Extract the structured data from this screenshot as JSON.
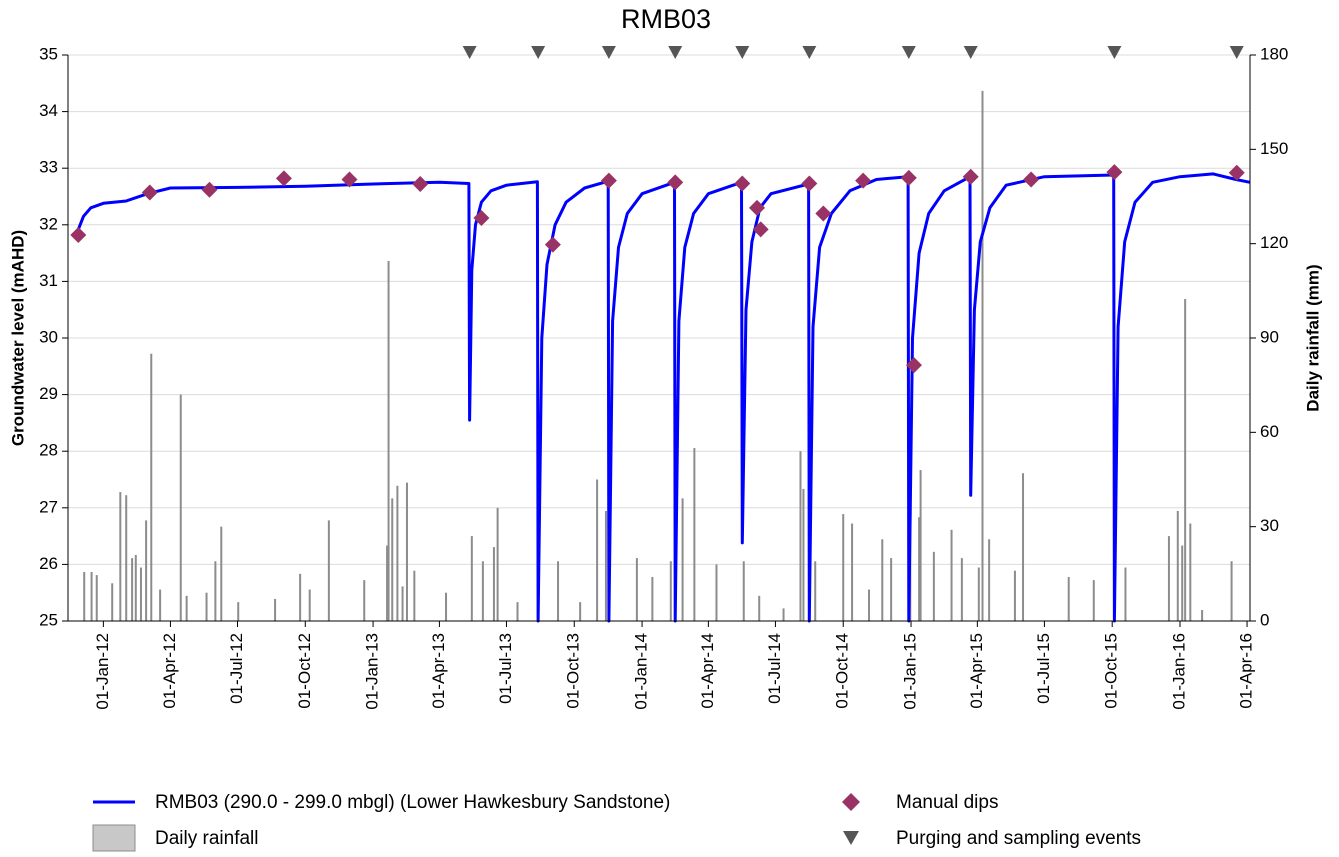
{
  "chart_data": {
    "type": "line",
    "title": "RMB03",
    "y_label": "Groundwater level (mAHD)",
    "y2_label": "Daily rainfall (mm)",
    "xlim": [
      "2011-11-14",
      "2016-04-05"
    ],
    "xticks": [
      {
        "value": "2012-01-01",
        "label": "01-Jan-12"
      },
      {
        "value": "2012-04-01",
        "label": "01-Apr-12"
      },
      {
        "value": "2012-07-01",
        "label": "01-Jul-12"
      },
      {
        "value": "2012-10-01",
        "label": "01-Oct-12"
      },
      {
        "value": "2013-01-01",
        "label": "01-Jan-13"
      },
      {
        "value": "2013-04-01",
        "label": "01-Apr-13"
      },
      {
        "value": "2013-07-01",
        "label": "01-Jul-13"
      },
      {
        "value": "2013-10-01",
        "label": "01-Oct-13"
      },
      {
        "value": "2014-01-01",
        "label": "01-Jan-14"
      },
      {
        "value": "2014-04-01",
        "label": "01-Apr-14"
      },
      {
        "value": "2014-07-01",
        "label": "01-Jul-14"
      },
      {
        "value": "2014-10-01",
        "label": "01-Oct-14"
      },
      {
        "value": "2015-01-01",
        "label": "01-Jan-15"
      },
      {
        "value": "2015-04-01",
        "label": "01-Apr-15"
      },
      {
        "value": "2015-07-01",
        "label": "01-Jul-15"
      },
      {
        "value": "2015-10-01",
        "label": "01-Oct-15"
      },
      {
        "value": "2016-01-01",
        "label": "01-Jan-16"
      },
      {
        "value": "2016-04-01",
        "label": "01-Apr-16"
      }
    ],
    "ylim": [
      25,
      35
    ],
    "yticks": [
      25,
      26,
      27,
      28,
      29,
      30,
      31,
      32,
      33,
      34,
      35
    ],
    "y2lim": [
      0,
      180
    ],
    "y2ticks": [
      0,
      30,
      60,
      90,
      120,
      150,
      180
    ],
    "grid": true,
    "legend": "bottom",
    "series": [
      {
        "name": "Daily rainfall",
        "type": "bar",
        "axis": "y2",
        "color": "#8c8c8c",
        "x": [
          "2011-12-06",
          "2011-12-16",
          "2011-12-23",
          "2012-01-13",
          "2012-01-24",
          "2012-02-01",
          "2012-02-09",
          "2012-02-14",
          "2012-02-21",
          "2012-02-28",
          "2012-03-06",
          "2012-03-18",
          "2012-04-15",
          "2012-04-23",
          "2012-05-20",
          "2012-06-01",
          "2012-06-09",
          "2012-07-02",
          "2012-08-21",
          "2012-09-24",
          "2012-10-07",
          "2012-11-02",
          "2012-12-20",
          "2013-01-20",
          "2013-01-22",
          "2013-01-27",
          "2013-02-03",
          "2013-02-10",
          "2013-02-16",
          "2013-02-26",
          "2013-04-10",
          "2013-05-15",
          "2013-05-30",
          "2013-06-14",
          "2013-06-19",
          "2013-07-16",
          "2013-09-09",
          "2013-10-09",
          "2013-11-01",
          "2013-11-13",
          "2013-12-25",
          "2014-01-15",
          "2014-02-09",
          "2014-02-25",
          "2014-03-13",
          "2014-04-12",
          "2014-05-19",
          "2014-06-09",
          "2014-07-12",
          "2014-08-04",
          "2014-08-08",
          "2014-08-24",
          "2014-10-01",
          "2014-10-13",
          "2014-11-05",
          "2014-11-23",
          "2014-12-05",
          "2014-12-31",
          "2015-01-12",
          "2015-01-14",
          "2015-02-01",
          "2015-02-25",
          "2015-03-11",
          "2015-04-03",
          "2015-04-08",
          "2015-04-17",
          "2015-05-22",
          "2015-06-02",
          "2015-08-03",
          "2015-09-06",
          "2015-10-19",
          "2015-12-17",
          "2015-12-29",
          "2016-01-04",
          "2016-01-08",
          "2016-01-15",
          "2016-01-31",
          "2016-03-11"
        ],
        "values": [
          15.6,
          15.6,
          14.6,
          12,
          41,
          40,
          20,
          21,
          17,
          32,
          85,
          10,
          72,
          8,
          9,
          19,
          30,
          6,
          7,
          15,
          10,
          32,
          13,
          24,
          114.5,
          39,
          43,
          11,
          44,
          16,
          9,
          27,
          19,
          23.5,
          36,
          6,
          19,
          6,
          45,
          35,
          20,
          14,
          19,
          39,
          55,
          18,
          19,
          8,
          4,
          54,
          42,
          19,
          34,
          31,
          10,
          26,
          20,
          29,
          33,
          48,
          22,
          29,
          20,
          17,
          168.6,
          26,
          16,
          47,
          14,
          13,
          17,
          27,
          35,
          24,
          102.4,
          31,
          3.5,
          19
        ]
      },
      {
        "name": "RMB03 (290.0 - 299.0 mbgl) (Lower Hawkesbury Sandstone)",
        "type": "line",
        "color": "#0000ff",
        "x": [
          "2011-11-26",
          "2011-12-05",
          "2011-12-15",
          "2012-01-01",
          "2012-02-01",
          "2012-03-01",
          "2012-04-01",
          "2012-07-01",
          "2012-10-01",
          "2013-01-01",
          "2013-04-01",
          "2013-05-11",
          "2013-05-12",
          "2013-05-15",
          "2013-05-20",
          "2013-05-28",
          "2013-06-10",
          "2013-07-01",
          "2013-08-12",
          "2013-08-13",
          "2013-08-18",
          "2013-08-25",
          "2013-09-05",
          "2013-09-20",
          "2013-10-15",
          "2013-11-16",
          "2013-11-17",
          "2013-11-22",
          "2013-11-30",
          "2013-12-12",
          "2014-01-01",
          "2014-02-14",
          "2014-02-15",
          "2014-02-20",
          "2014-02-28",
          "2014-03-12",
          "2014-04-01",
          "2014-05-16",
          "2014-05-17",
          "2014-05-22",
          "2014-05-30",
          "2014-06-10",
          "2014-06-25",
          "2014-08-15",
          "2014-08-16",
          "2014-08-21",
          "2014-08-30",
          "2014-09-15",
          "2014-10-10",
          "2014-11-15",
          "2014-12-28",
          "2014-12-29",
          "2015-01-03",
          "2015-01-12",
          "2015-01-25",
          "2015-02-15",
          "2015-03-22",
          "2015-03-23",
          "2015-03-28",
          "2015-04-05",
          "2015-04-18",
          "2015-05-10",
          "2015-07-01",
          "2015-10-03",
          "2015-10-04",
          "2015-10-09",
          "2015-10-18",
          "2015-11-01",
          "2015-11-25",
          "2016-01-01",
          "2016-02-15",
          "2016-03-17",
          "2016-04-05"
        ],
        "values": [
          31.85,
          32.15,
          32.3,
          32.38,
          32.42,
          32.55,
          32.65,
          32.66,
          32.68,
          32.72,
          32.75,
          32.73,
          28.55,
          31.2,
          32.0,
          32.4,
          32.6,
          32.7,
          32.76,
          25.0,
          30.0,
          31.3,
          32.0,
          32.4,
          32.65,
          32.77,
          25.0,
          30.3,
          31.6,
          32.2,
          32.55,
          32.75,
          25.0,
          30.3,
          31.6,
          32.2,
          32.55,
          32.75,
          26.38,
          30.5,
          31.7,
          32.3,
          32.55,
          32.72,
          25.0,
          30.2,
          31.6,
          32.2,
          32.6,
          32.8,
          32.85,
          25.0,
          30.0,
          31.5,
          32.2,
          32.6,
          32.85,
          27.22,
          30.5,
          31.7,
          32.3,
          32.7,
          32.85,
          32.88,
          25.0,
          30.2,
          31.7,
          32.4,
          32.75,
          32.85,
          32.9,
          32.8,
          32.75
        ]
      },
      {
        "name": "Manual dips",
        "type": "scatter",
        "color": "#993366",
        "x": [
          "2011-11-28",
          "2012-03-04",
          "2012-05-24",
          "2012-09-02",
          "2012-11-30",
          "2013-03-06",
          "2013-05-28",
          "2013-09-02",
          "2013-11-17",
          "2014-02-15",
          "2014-05-17",
          "2014-06-06",
          "2014-06-11",
          "2014-08-16",
          "2014-09-04",
          "2014-10-28",
          "2014-12-29",
          "2015-01-05",
          "2015-03-23",
          "2015-06-13",
          "2015-10-04",
          "2016-03-18"
        ],
        "values": [
          31.82,
          32.57,
          32.62,
          32.82,
          32.8,
          32.72,
          32.12,
          31.65,
          32.78,
          32.75,
          32.73,
          32.3,
          31.92,
          32.73,
          32.2,
          32.78,
          32.83,
          29.52,
          32.85,
          32.8,
          32.93,
          32.92
        ]
      },
      {
        "name": "Purging and sampling events",
        "type": "event",
        "color": "#555555",
        "x": [
          "2013-05-12",
          "2013-08-13",
          "2013-11-17",
          "2014-02-15",
          "2014-05-17",
          "2014-08-16",
          "2014-12-29",
          "2015-03-23",
          "2015-10-04",
          "2016-03-18"
        ]
      }
    ]
  }
}
